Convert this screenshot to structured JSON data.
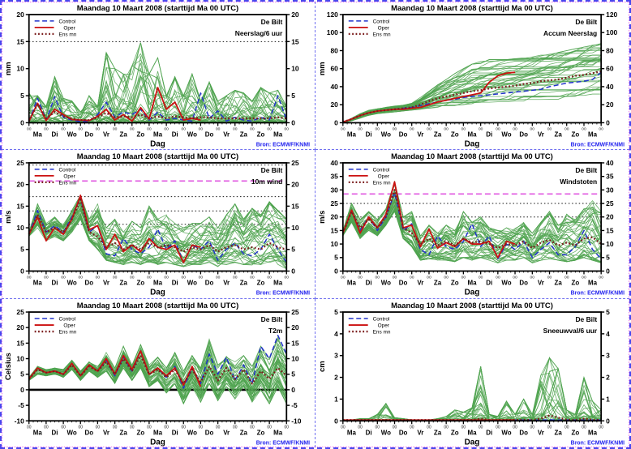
{
  "page": {
    "title": "Maandag  10 Maart    2008  (starttijd  Ma 00 UTC)",
    "source_label": "Bron: ECMWF/KNMI",
    "station": "De Bilt"
  },
  "colors": {
    "control": "#2233cc",
    "oper": "#cc1111",
    "ens_mean": "#7b1d1d",
    "ensemble_member": "#4fa34f",
    "reference_dotted": "#111111",
    "reference_magenta": "#e057e0",
    "zero_line": "#000000",
    "source_text": "#2222ee",
    "axis": "#000000"
  },
  "legend": {
    "entries": [
      "Control",
      "Oper",
      "Ens mn"
    ]
  },
  "x_axis": {
    "label": "Dag",
    "range": [
      0,
      15
    ],
    "day_labels": [
      "Ma",
      "Di",
      "Wo",
      "Do",
      "Vr",
      "Za",
      "Zo",
      "Ma",
      "Di",
      "Wo",
      "Do",
      "Vr",
      "Za",
      "Zo",
      "Ma"
    ],
    "hour_tick_label": "00"
  },
  "chart_data": [
    {
      "id": "neerslag-6uur",
      "type": "line",
      "header_right": [
        "De Bilt",
        "Neerslag/6 uur"
      ],
      "ylabel": "mm",
      "ylim": [
        0,
        20
      ],
      "yticks": [
        0,
        5,
        10,
        15,
        20
      ],
      "ref_lines": [
        {
          "y": 15,
          "kind": "dotted"
        }
      ],
      "x_step": 0.5,
      "series": [
        {
          "name": "Control",
          "style": "dashed",
          "values": [
            0.3,
            4.5,
            0.5,
            4.8,
            1,
            0.5,
            0.2,
            0.3,
            1.5,
            3.8,
            1,
            2,
            1.5,
            2.5,
            0.5,
            2,
            0.5,
            0.8,
            0.5,
            0.3,
            5.5,
            0.8,
            2.2,
            0.3,
            1,
            0.5,
            0.3,
            1,
            0.5,
            5,
            0.5
          ]
        },
        {
          "name": "Oper",
          "style": "solid",
          "values": [
            0.3,
            3.6,
            0.4,
            2.5,
            1.5,
            0.6,
            0.5,
            0.4,
            1.2,
            2.5,
            0.5,
            1.5,
            0.3,
            2.8,
            0.7,
            6.5,
            2.5,
            3.8,
            0.5,
            0.8,
            0.5
          ]
        },
        {
          "name": "Ens mn",
          "style": "dotted",
          "values": [
            0.3,
            3.5,
            0.8,
            2,
            1.2,
            0.8,
            0.5,
            0.5,
            1,
            1.8,
            1,
            1.2,
            1,
            1.5,
            0.8,
            1.2,
            0.8,
            1.2,
            1,
            0.8,
            1,
            1,
            0.8,
            0.8,
            0.8,
            0.8,
            0.8,
            0.8,
            0.8,
            1,
            0.8
          ]
        }
      ],
      "ensemble": {
        "members": 42,
        "seed": 11,
        "bias": 2.4,
        "walk": 0.85,
        "monotonic": false,
        "zero_floor": 0,
        "lower": 0,
        "upper": [
          5.5,
          5,
          3,
          8.5,
          4.5,
          4,
          2,
          5,
          3,
          13,
          10,
          9,
          10.5,
          14.8,
          9,
          12,
          5,
          8.5,
          5,
          9,
          4,
          7.5,
          4,
          5,
          6,
          5.5,
          4,
          6.5,
          5.5,
          6,
          3
        ]
      }
    },
    {
      "id": "accum-neerslag",
      "type": "line",
      "header_right": [
        "De Bilt",
        "Accum Neerslag"
      ],
      "ylabel": "mm",
      "ylim": [
        0,
        120
      ],
      "yticks": [
        0,
        20,
        40,
        60,
        80,
        100,
        120
      ],
      "ref_lines": [],
      "x_step": 0.5,
      "series": [
        {
          "name": "Control",
          "style": "dashed",
          "values": [
            0,
            4,
            8,
            11,
            13,
            14,
            15,
            16,
            17,
            19,
            21,
            23,
            25,
            26,
            28,
            29,
            30,
            31,
            32,
            33,
            34,
            35,
            36,
            37,
            40,
            42,
            44,
            45,
            46,
            48,
            56
          ]
        },
        {
          "name": "Oper",
          "style": "solid",
          "values": [
            0,
            4,
            8,
            11,
            13,
            14,
            15,
            15,
            16,
            17,
            20,
            23,
            25,
            27,
            29,
            31,
            33,
            45,
            52,
            55,
            56
          ]
        },
        {
          "name": "Ens mn",
          "style": "dotted",
          "values": [
            0,
            4,
            8,
            11,
            13,
            14,
            15,
            16,
            17,
            20,
            24,
            27,
            29,
            31,
            33,
            35,
            36,
            38,
            39,
            40,
            41,
            43,
            44,
            46,
            47,
            48,
            50,
            52,
            53,
            55,
            57
          ]
        }
      ],
      "ensemble": {
        "members": 42,
        "seed": 22,
        "bias": 1.0,
        "walk": 0.22,
        "monotonic": true,
        "zero_floor": 0,
        "lower": [
          0,
          2,
          5,
          8,
          10,
          11,
          12,
          13,
          14,
          15,
          16,
          17,
          18,
          19,
          20,
          21,
          22,
          22,
          23,
          23,
          24,
          24,
          25,
          25,
          26,
          26,
          27,
          27,
          28,
          28,
          28
        ],
        "upper": [
          0,
          5,
          10,
          14,
          16,
          18,
          19,
          20,
          22,
          28,
          35,
          42,
          48,
          55,
          60,
          65,
          68,
          70,
          70,
          70,
          71,
          72,
          73,
          75,
          76,
          78,
          80,
          82,
          84,
          86,
          88
        ]
      }
    },
    {
      "id": "10m-wind",
      "type": "line",
      "header_right": [
        "De Bilt",
        "10m wind"
      ],
      "ylabel": "m/s",
      "ylim": [
        0,
        25
      ],
      "yticks": [
        0,
        5,
        10,
        15,
        20,
        25
      ],
      "ref_lines": [
        {
          "y": 10.8,
          "kind": "dotted"
        },
        {
          "y": 13.9,
          "kind": "dotted"
        },
        {
          "y": 17.2,
          "kind": "dotted"
        },
        {
          "y": 24.5,
          "kind": "dotted"
        },
        {
          "y": 20.8,
          "kind": "magenta"
        }
      ],
      "x_step": 0.5,
      "series": [
        {
          "name": "Control",
          "style": "dashed",
          "values": [
            8.5,
            14,
            9,
            10.5,
            9,
            12.5,
            17,
            9,
            10.5,
            4,
            3.5,
            7.5,
            5,
            4,
            5.5,
            9.7,
            5,
            7,
            2,
            6,
            5,
            7,
            2.5,
            5,
            6.5,
            4,
            3.5,
            5,
            8.5,
            5,
            2
          ]
        },
        {
          "name": "Oper",
          "style": "solid",
          "values": [
            8.5,
            12.5,
            7,
            10,
            8.5,
            12,
            17.5,
            9.5,
            10.5,
            5,
            8.5,
            4.5,
            6,
            4.5,
            7.5,
            5.5,
            5,
            6,
            2,
            6,
            5.5
          ]
        },
        {
          "name": "Ens mn",
          "style": "dotted",
          "values": [
            8.5,
            13,
            9,
            10,
            9,
            12,
            16.5,
            9,
            8,
            5.5,
            6.5,
            5,
            6,
            5,
            6.5,
            5.5,
            6,
            5.5,
            4.5,
            5.5,
            5,
            6,
            4.5,
            5.5,
            6,
            5,
            5.5,
            5,
            6.5,
            5.5,
            5
          ]
        }
      ],
      "ensemble": {
        "members": 42,
        "seed": 33,
        "bias": 1.25,
        "walk": 0.5,
        "monotonic": false,
        "zero_floor": 0,
        "lower": [
          8,
          10,
          7,
          8,
          7,
          9,
          12,
          7,
          5,
          2.5,
          2,
          1.5,
          2,
          1.5,
          2,
          1.5,
          2,
          1.5,
          1,
          1.5,
          1.5,
          2,
          1,
          1.5,
          2,
          1.5,
          1,
          1.5,
          2,
          1.5,
          0.5
        ],
        "upper": [
          9,
          15.5,
          11,
          12.5,
          11,
          14,
          17.5,
          12,
          15.5,
          10,
          12,
          9,
          11.5,
          10,
          15,
          12,
          13,
          11,
          10,
          11,
          11,
          12.5,
          10,
          13,
          15.5,
          12,
          14.5,
          13,
          16,
          14,
          12
        ]
      }
    },
    {
      "id": "windstoten",
      "type": "line",
      "header_right": [
        "De Bilt",
        "Windstoten"
      ],
      "ylabel": "m/s",
      "ylim": [
        0,
        40
      ],
      "yticks": [
        0,
        5,
        10,
        15,
        20,
        25,
        30,
        35,
        40
      ],
      "ref_lines": [
        {
          "y": 20,
          "kind": "dotted"
        },
        {
          "y": 25,
          "kind": "dotted"
        },
        {
          "y": 28.5,
          "kind": "magenta"
        }
      ],
      "x_step": 0.5,
      "series": [
        {
          "name": "Control",
          "style": "dashed",
          "values": [
            14,
            22.5,
            15,
            20,
            15,
            20,
            29,
            15,
            17.5,
            8,
            6,
            13,
            9,
            8,
            11,
            17.5,
            9,
            13,
            4.5,
            10,
            8,
            11,
            5,
            8,
            10.5,
            6,
            6,
            9,
            15,
            8,
            4.5
          ]
        },
        {
          "name": "Oper",
          "style": "solid",
          "values": [
            14,
            22.5,
            14,
            20,
            16,
            21,
            33,
            16,
            17,
            9,
            15.5,
            8.5,
            10.5,
            9,
            12,
            10,
            10,
            11,
            5,
            11,
            10
          ]
        },
        {
          "name": "Ens mn",
          "style": "dotted",
          "values": [
            14,
            22,
            16,
            19,
            16,
            20,
            30,
            16,
            14,
            10,
            12,
            9.5,
            11,
            9.5,
            12,
            10.5,
            11,
            10,
            8.5,
            10,
            9.5,
            11,
            8.5,
            10.5,
            11.5,
            9.5,
            10.5,
            9.5,
            12,
            12.5,
            10
          ]
        }
      ],
      "ensemble": {
        "members": 42,
        "seed": 44,
        "bias": 1.25,
        "walk": 0.5,
        "monotonic": false,
        "zero_floor": 0,
        "lower": [
          13,
          18,
          12,
          15,
          13,
          17,
          22,
          12,
          9,
          4,
          4.5,
          4,
          4,
          3.5,
          5,
          4,
          5,
          4,
          3,
          4,
          4,
          5,
          3,
          4,
          4.5,
          4,
          3.5,
          4,
          5,
          4,
          3
        ],
        "upper": [
          15,
          25,
          19,
          22,
          19,
          23,
          33,
          20,
          22,
          13,
          17,
          14,
          17,
          15,
          22,
          18,
          20,
          16,
          15,
          16,
          16,
          18,
          14,
          18,
          22,
          17,
          21,
          19,
          23,
          26,
          22
        ]
      }
    },
    {
      "id": "t2m",
      "type": "line",
      "header_right": [
        "De Bilt",
        "T2m"
      ],
      "ylabel": "Celsius",
      "ylim": [
        -10,
        25
      ],
      "yticks": [
        -10,
        -5,
        0,
        5,
        10,
        15,
        20,
        25
      ],
      "ref_lines": [
        {
          "y": 0,
          "kind": "zero"
        }
      ],
      "x_step": 0.5,
      "series": [
        {
          "name": "Control",
          "style": "dashed",
          "values": [
            3.5,
            7,
            5.5,
            6,
            5,
            8.5,
            4.5,
            8,
            6,
            9.5,
            4.5,
            10.5,
            6,
            12.5,
            5,
            7,
            4,
            7.5,
            0.5,
            7,
            2,
            11.5,
            5,
            10.5,
            3,
            8,
            2,
            14,
            10,
            17.5,
            11.5
          ]
        },
        {
          "name": "Oper",
          "style": "solid",
          "values": [
            3.5,
            7,
            5.5,
            6,
            5,
            8.5,
            4.5,
            8,
            6,
            10,
            5,
            11,
            6.5,
            12.5,
            5,
            7,
            4.5,
            7,
            1.5,
            7.5,
            1
          ]
        },
        {
          "name": "Ens mn",
          "style": "dotted",
          "values": [
            3.5,
            6.5,
            5.5,
            6,
            5,
            8,
            4.5,
            7.5,
            6,
            9,
            5,
            10,
            6,
            11,
            5,
            6.5,
            4,
            6.5,
            2,
            6.5,
            2.5,
            7.5,
            3,
            7,
            3.5,
            6.5,
            2,
            6,
            3.5,
            7,
            4.5
          ]
        }
      ],
      "ensemble": {
        "members": 42,
        "seed": 55,
        "bias": 1.1,
        "walk": 0.45,
        "monotonic": false,
        "zero_floor": 0,
        "lower": [
          3,
          5,
          4.5,
          5,
          4,
          6.5,
          3,
          6,
          4,
          6,
          2,
          7,
          3,
          7,
          1,
          3,
          -1,
          2,
          -4.5,
          1,
          -4,
          2,
          -3.5,
          1,
          -3,
          1,
          -4,
          0,
          -4.5,
          1,
          -4.5
        ],
        "upper": [
          4,
          7.5,
          6.5,
          7,
          6.5,
          9.5,
          6,
          9,
          7.5,
          12,
          7,
          14,
          8,
          14.5,
          8,
          10.5,
          7,
          12,
          6,
          11,
          7,
          16.5,
          8,
          12,
          9,
          11,
          7.5,
          14,
          10,
          17,
          11.5
        ]
      }
    },
    {
      "id": "sneeuwval-6uur",
      "type": "line",
      "header_right": [
        "De Bilt",
        "Sneeuwval/6 uur"
      ],
      "ylabel": "cm",
      "ylim": [
        0,
        5
      ],
      "yticks": [
        0,
        1,
        2,
        3,
        4,
        5
      ],
      "ref_lines": [],
      "x_step": 0.5,
      "series": [
        {
          "name": "Control",
          "style": "dashed",
          "values": [
            0.03,
            0.03,
            0.03,
            0.03,
            0.03,
            0.03,
            0.03,
            0.03,
            0.03,
            0.03,
            0.03,
            0.03,
            0.03,
            0.03,
            0.03,
            0.03,
            0.03,
            0.03,
            0.03,
            0.03,
            0.03,
            0.03,
            0.03,
            0.03,
            0.05,
            0.03,
            0.03,
            0.03,
            0.03,
            0.03,
            0.03
          ]
        },
        {
          "name": "Oper",
          "style": "solid",
          "values": [
            0.03,
            0.03,
            0.03,
            0.03,
            0.03,
            0.03,
            0.03,
            0.03,
            0.03,
            0.03,
            0.03,
            0.03,
            0.03,
            0.03,
            0.03,
            0.03,
            0.03,
            0.03,
            0.03,
            0.03,
            0.03
          ]
        },
        {
          "name": "Ens mn",
          "style": "dotted",
          "values": [
            0.03,
            0.03,
            0.03,
            0.03,
            0.03,
            0.03,
            0.03,
            0.03,
            0.03,
            0.03,
            0.03,
            0.03,
            0.03,
            0.03,
            0.03,
            0.03,
            0.1,
            0.03,
            0.03,
            0.03,
            0.03,
            0.05,
            0.03,
            0.1,
            0.25,
            0.15,
            0.05,
            0.03,
            0.1,
            0.05,
            0.03
          ]
        }
      ],
      "ensemble": {
        "members": 42,
        "seed": 66,
        "bias": 3.5,
        "walk": 0.9,
        "monotonic": false,
        "zero_floor": 0.05,
        "lower": 0,
        "upper": [
          0,
          0.05,
          0.1,
          0.1,
          0.3,
          0.8,
          0.15,
          0.1,
          0.05,
          0.05,
          0.05,
          0.1,
          0.2,
          0.5,
          0.4,
          0.6,
          2.5,
          0.3,
          0.2,
          0.9,
          0.3,
          1.0,
          0.3,
          2.1,
          2.9,
          2.4,
          0.5,
          0.3,
          2.0,
          0.9,
          0.5
        ]
      }
    }
  ]
}
